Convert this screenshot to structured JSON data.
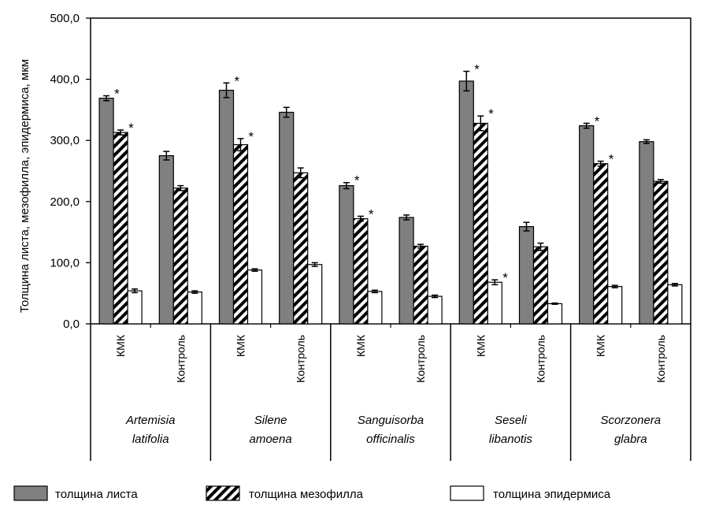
{
  "chart_data": {
    "type": "bar",
    "ylabel": "Толщина  листа, мезофилла, эпидермиса, мкм",
    "ylim": [
      0,
      500
    ],
    "yticks": [
      0,
      100,
      200,
      300,
      400,
      500
    ],
    "ytick_labels": [
      "0,0",
      "100,0",
      "200,0",
      "300,0",
      "400,0",
      "500,0"
    ],
    "species": [
      {
        "name_line1": "Artemisia",
        "name_line2": "latifolia"
      },
      {
        "name_line1": "Silene",
        "name_line2": "amoena"
      },
      {
        "name_line1": "Sanguisorba",
        "name_line2": "officinalis"
      },
      {
        "name_line1": "Seseli",
        "name_line2": "libanotis"
      },
      {
        "name_line1": "Scorzonera",
        "name_line2": "glabra"
      }
    ],
    "conditions": [
      "КМК",
      "Контроль"
    ],
    "series": [
      {
        "name": "толщина листа",
        "pattern": "gray",
        "values": [
          369,
          275,
          382,
          346,
          226,
          174,
          397,
          159,
          324,
          298
        ],
        "errors": [
          4,
          7,
          12,
          8,
          5,
          4,
          16,
          7,
          4,
          3
        ],
        "significant": [
          true,
          false,
          true,
          false,
          true,
          false,
          true,
          false,
          true,
          false
        ]
      },
      {
        "name": "толщина  мезофилла",
        "pattern": "hatch",
        "values": [
          313,
          222,
          293,
          247,
          172,
          127,
          328,
          126,
          262,
          233
        ],
        "errors": [
          4,
          4,
          10,
          8,
          4,
          3,
          12,
          6,
          4,
          3
        ],
        "significant": [
          true,
          false,
          true,
          false,
          true,
          false,
          true,
          false,
          true,
          false
        ]
      },
      {
        "name": "толщина  эпидермиса",
        "pattern": "white",
        "values": [
          54,
          52,
          88,
          97,
          53,
          45,
          68,
          33,
          61,
          64
        ],
        "errors": [
          3,
          2,
          2,
          3,
          2,
          2,
          4,
          1,
          2,
          2
        ],
        "significant": [
          false,
          false,
          false,
          false,
          false,
          false,
          true,
          false,
          false,
          false
        ]
      }
    ],
    "significance_marker": "*",
    "colors": {
      "gray": "#808080",
      "hatch": "#000000",
      "white": "#ffffff"
    }
  }
}
